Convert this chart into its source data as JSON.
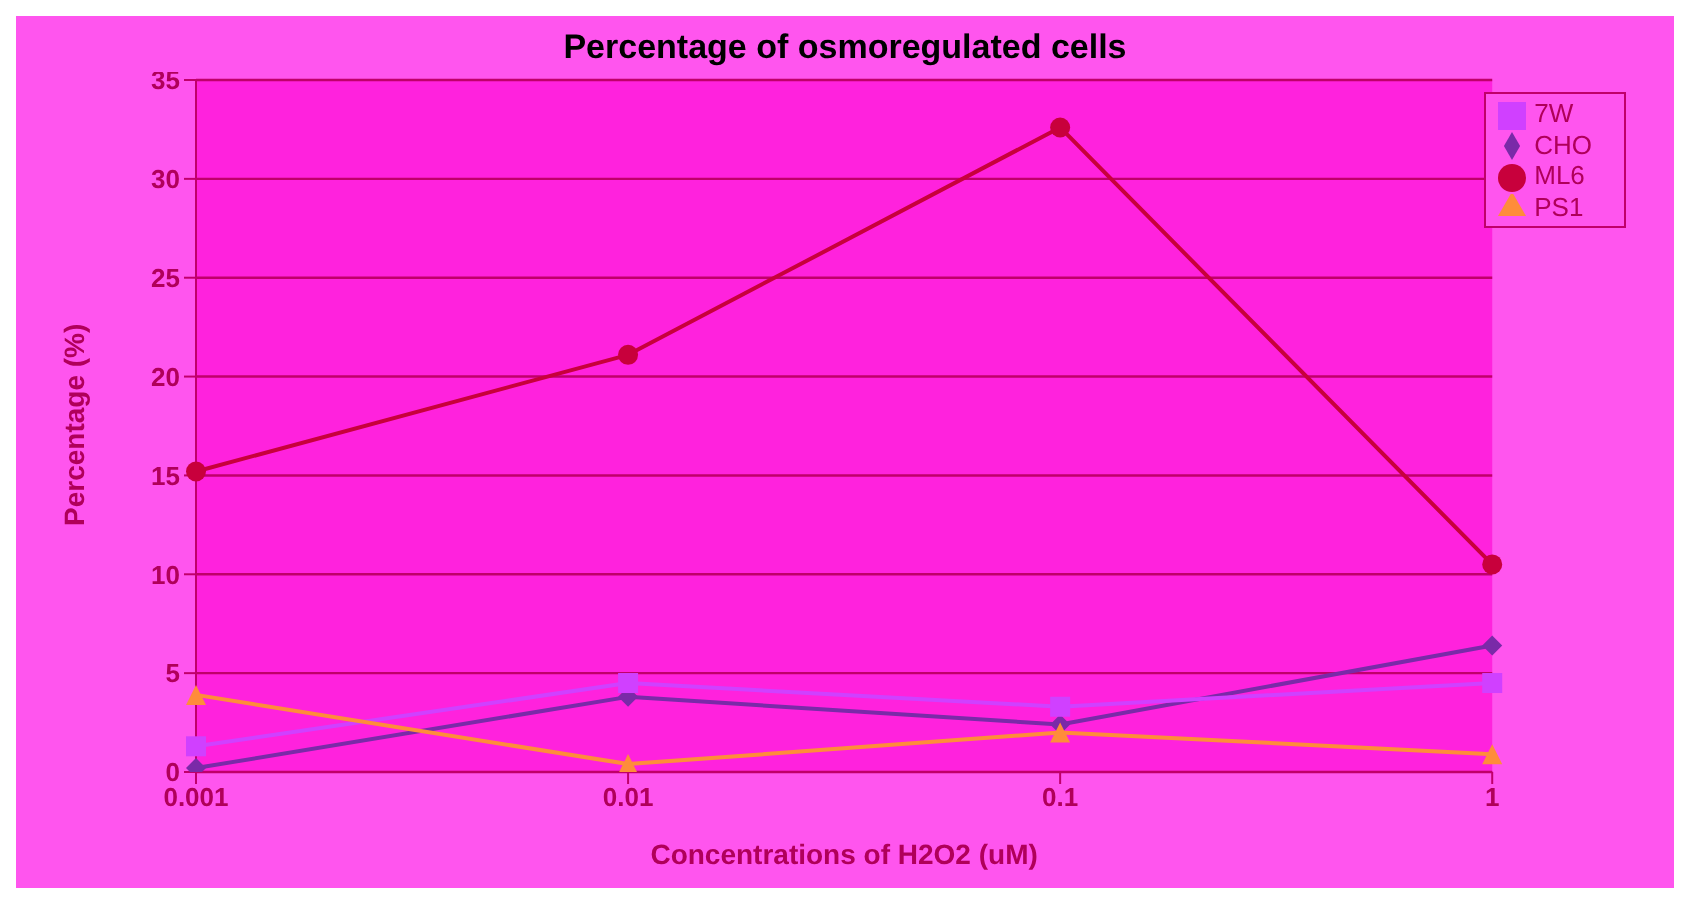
{
  "chart_data": {
    "type": "line",
    "title": "Percentage of osmoregulated cells",
    "xlabel": "Concentrations of H2O2 (uM)",
    "ylabel": "Percentage (%)",
    "categories": [
      "0.001",
      "0.01",
      "0.1",
      "1"
    ],
    "series": [
      {
        "name": "CHO",
        "color": "#7a2aa8",
        "marker": "diamond",
        "values": [
          0.2,
          3.8,
          2.4,
          6.4
        ]
      },
      {
        "name": "7W",
        "color": "#d040ff",
        "marker": "square",
        "values": [
          1.3,
          4.5,
          3.3,
          4.5
        ]
      },
      {
        "name": "PS1",
        "color": "#ff8c3a",
        "marker": "triangle",
        "values": [
          3.9,
          0.4,
          2.0,
          0.9
        ]
      },
      {
        "name": "ML6",
        "color": "#c8003c",
        "marker": "circle",
        "values": [
          15.2,
          21.1,
          32.6,
          10.5
        ]
      }
    ],
    "ylim": [
      0,
      35
    ],
    "yticks": [
      0,
      5,
      10,
      15,
      20,
      25,
      30,
      35
    ],
    "grid": "y",
    "legend": "top right"
  }
}
